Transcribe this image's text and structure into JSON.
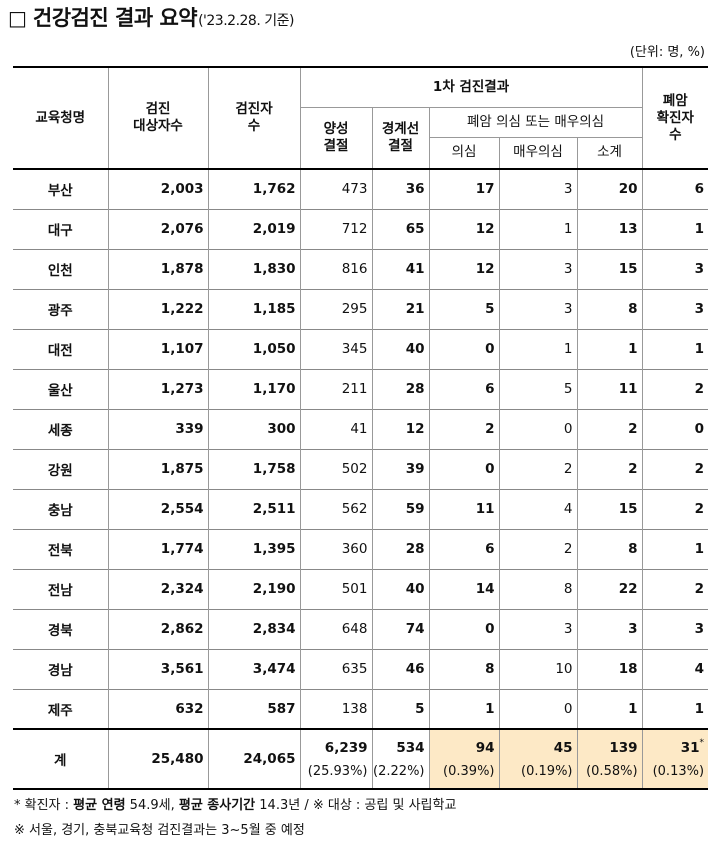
{
  "title": {
    "box": "□",
    "main": "건강검진 결과 요약",
    "sub": "('23.2.28. 기준)"
  },
  "unit": "(단위: 명, %)",
  "headers": {
    "office": "교육청명",
    "target": "검진\n대상자수",
    "examined": "검진자\n수",
    "first_result": "1차 검진결과",
    "positive": "양성\n결절",
    "borderline": "경계선\n결절",
    "suspect_group": "폐암 의심 또는 매우의심",
    "suspect": "의심",
    "very_suspect": "매우의심",
    "subtotal": "소계",
    "confirmed": "폐암\n확진자\n수"
  },
  "rows": [
    {
      "name": "부산",
      "target": "2,003",
      "examined": "1,762",
      "positive": "473",
      "borderline": "36",
      "suspect": "17",
      "very": "3",
      "subtotal": "20",
      "confirmed": "6"
    },
    {
      "name": "대구",
      "target": "2,076",
      "examined": "2,019",
      "positive": "712",
      "borderline": "65",
      "suspect": "12",
      "very": "1",
      "subtotal": "13",
      "confirmed": "1"
    },
    {
      "name": "인천",
      "target": "1,878",
      "examined": "1,830",
      "positive": "816",
      "borderline": "41",
      "suspect": "12",
      "very": "3",
      "subtotal": "15",
      "confirmed": "3"
    },
    {
      "name": "광주",
      "target": "1,222",
      "examined": "1,185",
      "positive": "295",
      "borderline": "21",
      "suspect": "5",
      "very": "3",
      "subtotal": "8",
      "confirmed": "3"
    },
    {
      "name": "대전",
      "target": "1,107",
      "examined": "1,050",
      "positive": "345",
      "borderline": "40",
      "suspect": "0",
      "very": "1",
      "subtotal": "1",
      "confirmed": "1"
    },
    {
      "name": "울산",
      "target": "1,273",
      "examined": "1,170",
      "positive": "211",
      "borderline": "28",
      "suspect": "6",
      "very": "5",
      "subtotal": "11",
      "confirmed": "2"
    },
    {
      "name": "세종",
      "target": "339",
      "examined": "300",
      "positive": "41",
      "borderline": "12",
      "suspect": "2",
      "very": "0",
      "subtotal": "2",
      "confirmed": "0"
    },
    {
      "name": "강원",
      "target": "1,875",
      "examined": "1,758",
      "positive": "502",
      "borderline": "39",
      "suspect": "0",
      "very": "2",
      "subtotal": "2",
      "confirmed": "2"
    },
    {
      "name": "충남",
      "target": "2,554",
      "examined": "2,511",
      "positive": "562",
      "borderline": "59",
      "suspect": "11",
      "very": "4",
      "subtotal": "15",
      "confirmed": "2"
    },
    {
      "name": "전북",
      "target": "1,774",
      "examined": "1,395",
      "positive": "360",
      "borderline": "28",
      "suspect": "6",
      "very": "2",
      "subtotal": "8",
      "confirmed": "1"
    },
    {
      "name": "전남",
      "target": "2,324",
      "examined": "2,190",
      "positive": "501",
      "borderline": "40",
      "suspect": "14",
      "very": "8",
      "subtotal": "22",
      "confirmed": "2"
    },
    {
      "name": "경북",
      "target": "2,862",
      "examined": "2,834",
      "positive": "648",
      "borderline": "74",
      "suspect": "0",
      "very": "3",
      "subtotal": "3",
      "confirmed": "3"
    },
    {
      "name": "경남",
      "target": "3,561",
      "examined": "3,474",
      "positive": "635",
      "borderline": "46",
      "suspect": "8",
      "very": "10",
      "subtotal": "18",
      "confirmed": "4"
    },
    {
      "name": "제주",
      "target": "632",
      "examined": "587",
      "positive": "138",
      "borderline": "5",
      "suspect": "1",
      "very": "0",
      "subtotal": "1",
      "confirmed": "1"
    }
  ],
  "total": {
    "name": "계",
    "target": "25,480",
    "examined": "24,065",
    "positive": "6,239",
    "positive_pct": "(25.93%)",
    "borderline": "534",
    "borderline_pct": "(2.22%)",
    "suspect": "94",
    "suspect_pct": "(0.39%)",
    "very": "45",
    "very_pct": "(0.19%)",
    "subtotal": "139",
    "subtotal_pct": "(0.58%)",
    "confirmed": "31",
    "confirmed_mark": "*",
    "confirmed_pct": "(0.13%)"
  },
  "footnotes": {
    "line1_prefix": "* 확진자 : ",
    "line1_b1": "평균 연령",
    "line1_t1": " 54.9세, ",
    "line1_b2": "평균 종사기간",
    "line1_t2": " 14.3년 / ※ 대상 : 공립 및 사립학교",
    "line2": "※ 서울, 경기, 충북교육청 검진결과는 3~5월 중 예정"
  },
  "colors": {
    "highlight": "#fde9c6"
  }
}
